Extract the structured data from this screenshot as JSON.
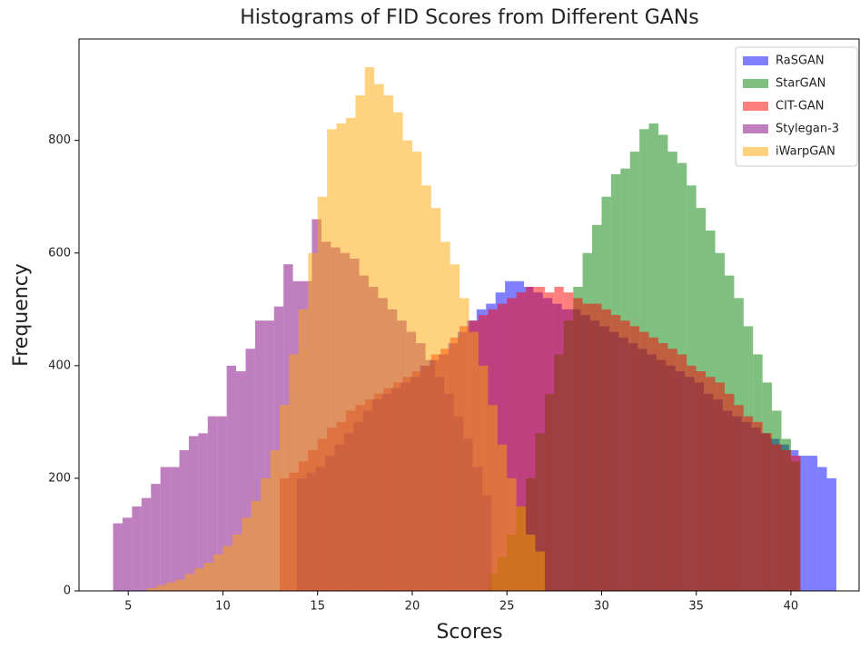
{
  "chart_data": {
    "type": "histogram",
    "title": "Histograms of FID Scores from Different GANs",
    "x_label": "Scores",
    "y_label": "Frequency",
    "xlim": [
      2.4,
      43.6
    ],
    "ylim": [
      0,
      980
    ],
    "xticks": [
      5,
      10,
      15,
      20,
      25,
      30,
      35,
      40
    ],
    "yticks": [
      0,
      200,
      400,
      600,
      800
    ],
    "legend": "upper right",
    "opacity": 0.5,
    "series": [
      {
        "name": "RaSGAN",
        "color": "#0000ff",
        "bins": [
          13.9,
          14.4,
          14.9,
          15.4,
          15.9,
          16.4,
          16.9,
          17.4,
          17.9,
          18.4,
          18.9,
          19.4,
          19.9,
          20.4,
          20.9,
          21.4,
          21.9,
          22.4,
          22.9,
          23.4,
          23.9,
          24.4,
          24.9,
          25.4,
          25.9,
          26.4,
          26.9,
          27.4,
          27.9,
          28.4,
          28.9,
          29.4,
          29.9,
          30.4,
          30.9,
          31.4,
          31.9,
          32.4,
          32.9,
          33.4,
          33.9,
          34.4,
          34.9,
          35.4,
          35.9,
          36.4,
          36.9,
          37.4,
          37.9,
          38.4,
          38.9,
          39.4,
          39.9,
          40.4,
          40.9,
          41.4,
          41.9,
          42.4
        ],
        "values": [
          200,
          210,
          220,
          240,
          260,
          280,
          300,
          320,
          340,
          350,
          360,
          370,
          380,
          400,
          410,
          420,
          440,
          460,
          480,
          500,
          510,
          530,
          550,
          550,
          540,
          530,
          520,
          510,
          500,
          500,
          490,
          480,
          470,
          460,
          450,
          440,
          430,
          420,
          410,
          400,
          390,
          380,
          370,
          350,
          340,
          320,
          310,
          300,
          290,
          280,
          270,
          260,
          250,
          240,
          240,
          220,
          200
        ]
      },
      {
        "name": "StarGAN",
        "color": "#008000",
        "bins": [
          24,
          24.5,
          25,
          25.5,
          26,
          26.5,
          27,
          27.5,
          28,
          28.5,
          29,
          29.5,
          30,
          30.5,
          31,
          31.5,
          32,
          32.5,
          33,
          33.5,
          34,
          34.5,
          35,
          35.5,
          36,
          36.5,
          37,
          37.5,
          38,
          38.5,
          39,
          39.5,
          40,
          40.5
        ],
        "values": [
          30,
          60,
          100,
          150,
          200,
          280,
          350,
          420,
          480,
          540,
          600,
          650,
          700,
          740,
          750,
          780,
          820,
          830,
          810,
          780,
          760,
          720,
          680,
          640,
          600,
          560,
          520,
          470,
          420,
          370,
          320,
          270,
          230
        ]
      },
      {
        "name": "CIT-GAN",
        "color": "#ff0000",
        "bins": [
          13,
          13.5,
          14,
          14.5,
          15,
          15.5,
          16,
          16.5,
          17,
          17.5,
          18,
          18.5,
          19,
          19.5,
          20,
          20.5,
          21,
          21.5,
          22,
          22.5,
          23,
          23.5,
          24,
          24.5,
          25,
          25.5,
          26,
          26.5,
          27,
          27.5,
          28,
          28.5,
          29,
          29.5,
          30,
          30.5,
          31,
          31.5,
          32,
          32.5,
          33,
          33.5,
          34,
          34.5,
          35,
          35.5,
          36,
          36.5,
          37,
          37.5,
          38,
          38.5,
          39,
          39.5,
          40,
          40.5
        ],
        "values": [
          200,
          210,
          230,
          250,
          270,
          290,
          300,
          320,
          330,
          340,
          350,
          360,
          370,
          380,
          390,
          400,
          420,
          430,
          450,
          470,
          480,
          490,
          500,
          510,
          520,
          530,
          540,
          540,
          530,
          540,
          530,
          520,
          510,
          510,
          500,
          490,
          480,
          470,
          460,
          450,
          440,
          430,
          420,
          400,
          390,
          380,
          370,
          350,
          330,
          310,
          300,
          280,
          260,
          250,
          240
        ]
      },
      {
        "name": "Stylegan-3",
        "color": "#800080",
        "bins": [
          4.2,
          4.7,
          5.2,
          5.7,
          6.2,
          6.7,
          7.2,
          7.7,
          8.2,
          8.7,
          9.2,
          9.7,
          10.2,
          10.7,
          11.2,
          11.7,
          12.2,
          12.7,
          13.2,
          13.7,
          14.2,
          14.7,
          15.2,
          15.7,
          16.2,
          16.7,
          17.2,
          17.7,
          18.2,
          18.7,
          19.2,
          19.7,
          20.2,
          20.7,
          21.2,
          21.7,
          22.2,
          22.7,
          23.2,
          23.7,
          24.2
        ],
        "values": [
          120,
          130,
          150,
          165,
          190,
          220,
          220,
          250,
          275,
          280,
          310,
          310,
          400,
          390,
          430,
          480,
          480,
          505,
          580,
          550,
          550,
          660,
          620,
          610,
          600,
          590,
          560,
          540,
          520,
          500,
          480,
          460,
          440,
          410,
          380,
          350,
          310,
          270,
          220,
          170
        ]
      },
      {
        "name": "iWarpGAN",
        "color": "#ffa500",
        "bins": [
          6,
          6.5,
          7,
          7.5,
          8,
          8.5,
          9,
          9.5,
          10,
          10.5,
          11,
          11.5,
          12,
          12.5,
          13,
          13.5,
          14,
          14.5,
          15,
          15.5,
          16,
          16.5,
          17,
          17.5,
          18,
          18.5,
          19,
          19.5,
          20,
          20.5,
          21,
          21.5,
          22,
          22.5,
          23,
          23.5,
          24,
          24.5,
          25,
          25.5,
          26,
          26.5,
          27
        ],
        "values": [
          5,
          10,
          15,
          20,
          30,
          40,
          50,
          65,
          80,
          100,
          130,
          160,
          200,
          250,
          330,
          420,
          500,
          600,
          700,
          820,
          830,
          840,
          880,
          930,
          900,
          880,
          850,
          800,
          780,
          720,
          680,
          620,
          580,
          520,
          460,
          400,
          330,
          260,
          200,
          150,
          100,
          70
        ]
      }
    ]
  }
}
